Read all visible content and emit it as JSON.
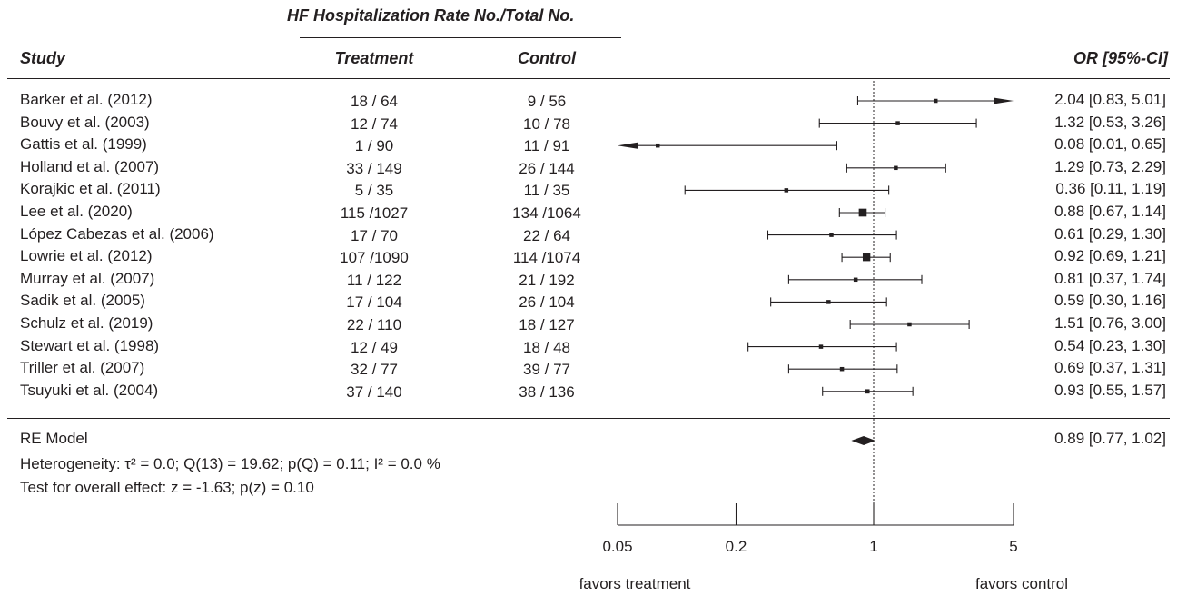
{
  "header": {
    "group_title": "HF Hospitalization Rate No./Total No.",
    "study": "Study",
    "treatment": "Treatment",
    "control": "Control",
    "or_ci": "OR [95%-CI]"
  },
  "summary": {
    "model": "RE Model",
    "heterogeneity": "Heterogeneity: τ² = 0.0; Q(13) = 19.62; p(Q) = 0.11; I² = 0.0 %",
    "overall_test": "Test for overall effect: z = -1.63; p(z) = 0.10",
    "or_text": "0.89 [0.77, 1.02]"
  },
  "chart_data": {
    "type": "forest",
    "x_scale": "log",
    "xlim": [
      0.05,
      5
    ],
    "x_ticks": [
      "0.05",
      "0.2",
      "1",
      "5"
    ],
    "reference_line": 1,
    "axis_captions": {
      "left": "favors treatment",
      "right": "favors control"
    },
    "studies": [
      {
        "name": "Barker et al. (2012)",
        "treatment": "18 / 64",
        "control": "9 / 56",
        "or": 2.04,
        "lo": 0.83,
        "hi": 5.01,
        "or_text": "2.04 [0.83, 5.01]",
        "weight": 0.5
      },
      {
        "name": "Bouvy et al. (2003)",
        "treatment": "12 / 74",
        "control": "10 / 78",
        "or": 1.32,
        "lo": 0.53,
        "hi": 3.26,
        "or_text": "1.32 [0.53, 3.26]",
        "weight": 0.4
      },
      {
        "name": "Gattis et al. (1999)",
        "treatment": "1 / 90",
        "control": "11 / 91",
        "or": 0.08,
        "lo": 0.01,
        "hi": 0.65,
        "or_text": "0.08 [0.01, 0.65]",
        "weight": 0.1
      },
      {
        "name": "Holland et al. (2007)",
        "treatment": "33 / 149",
        "control": "26 / 144",
        "or": 1.29,
        "lo": 0.73,
        "hi": 2.29,
        "or_text": "1.29 [0.73, 2.29]",
        "weight": 0.7
      },
      {
        "name": "Korajkic et al. (2011)",
        "treatment": "5 / 35",
        "control": "11 / 35",
        "or": 0.36,
        "lo": 0.11,
        "hi": 1.19,
        "or_text": "0.36 [0.11, 1.19]",
        "weight": 0.3
      },
      {
        "name": "Lee et al. (2020)",
        "treatment": "115 /1027",
        "control": "134 /1064",
        "or": 0.88,
        "lo": 0.67,
        "hi": 1.14,
        "or_text": "0.88 [0.67, 1.14]",
        "weight": 3.0
      },
      {
        "name": "López Cabezas et al. (2006)",
        "treatment": "17 / 70",
        "control": "22 / 64",
        "or": 0.61,
        "lo": 0.29,
        "hi": 1.3,
        "or_text": "0.61 [0.29, 1.30]",
        "weight": 0.5
      },
      {
        "name": "Lowrie et al. (2012)",
        "treatment": "107 /1090",
        "control": "114 /1074",
        "or": 0.92,
        "lo": 0.69,
        "hi": 1.21,
        "or_text": "0.92 [0.69, 1.21]",
        "weight": 2.8
      },
      {
        "name": "Murray et al. (2007)",
        "treatment": "11 / 122",
        "control": "21 / 192",
        "or": 0.81,
        "lo": 0.37,
        "hi": 1.74,
        "or_text": "0.81 [0.37, 1.74]",
        "weight": 0.45
      },
      {
        "name": "Sadik et al. (2005)",
        "treatment": "17 / 104",
        "control": "26 / 104",
        "or": 0.59,
        "lo": 0.3,
        "hi": 1.16,
        "or_text": "0.59 [0.30, 1.16]",
        "weight": 0.7
      },
      {
        "name": "Schulz et al. (2019)",
        "treatment": "22 / 110",
        "control": "18 / 127",
        "or": 1.51,
        "lo": 0.76,
        "hi": 3.0,
        "or_text": "1.51 [0.76, 3.00]",
        "weight": 0.65
      },
      {
        "name": "Stewart et al. (1998)",
        "treatment": "12 / 49",
        "control": "18 / 48",
        "or": 0.54,
        "lo": 0.23,
        "hi": 1.3,
        "or_text": "0.54 [0.23, 1.30]",
        "weight": 0.45
      },
      {
        "name": "Triller et al. (2007)",
        "treatment": "32 / 77",
        "control": "39 / 77",
        "or": 0.69,
        "lo": 0.37,
        "hi": 1.31,
        "or_text": "0.69 [0.37, 1.31]",
        "weight": 0.7
      },
      {
        "name": "Tsuyuki et al. (2004)",
        "treatment": "37 / 140",
        "control": "38 / 136",
        "or": 0.93,
        "lo": 0.55,
        "hi": 1.57,
        "or_text": "0.93 [0.55, 1.57]",
        "weight": 0.9
      }
    ],
    "pooled": {
      "or": 0.89,
      "lo": 0.77,
      "hi": 1.02
    }
  }
}
